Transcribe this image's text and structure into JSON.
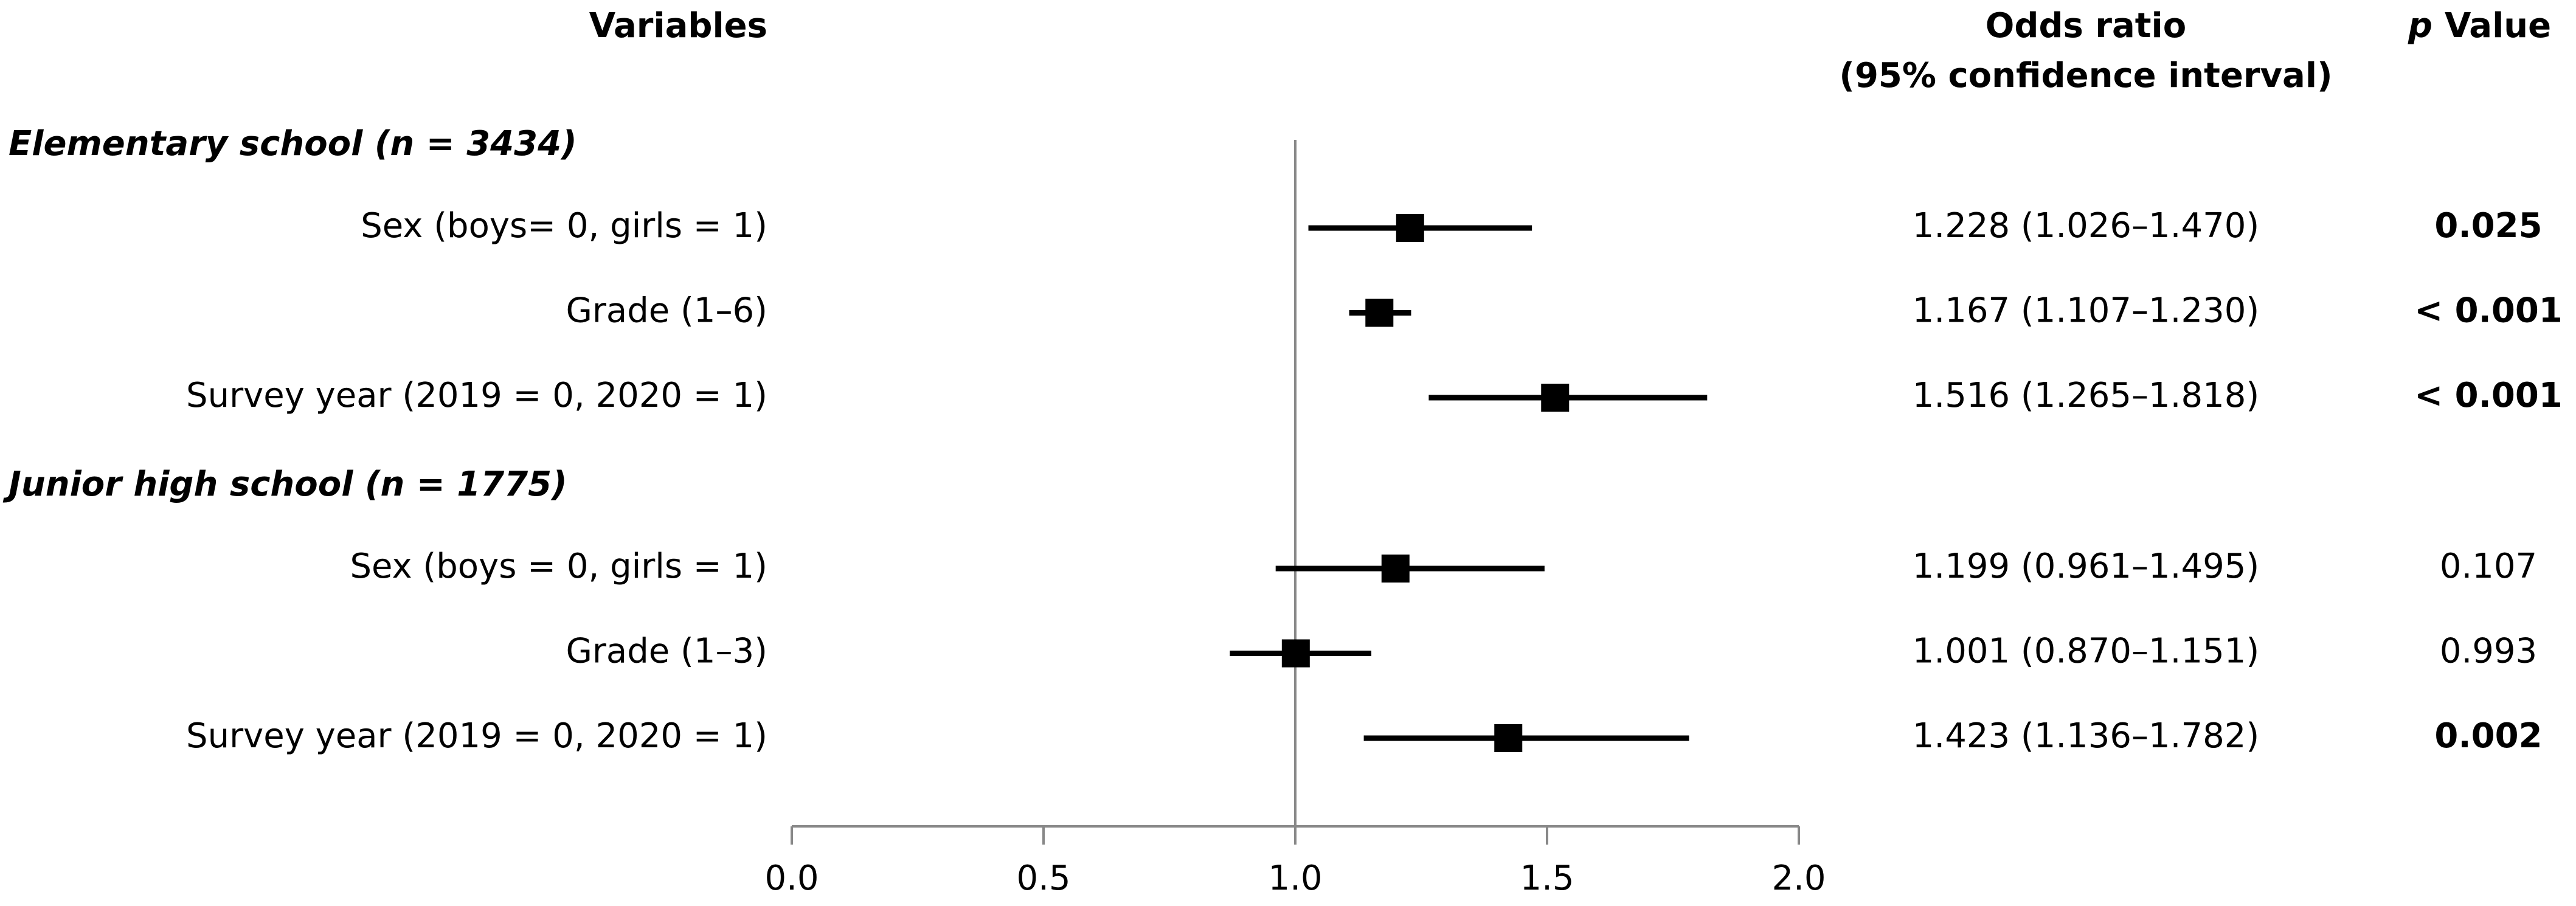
{
  "chart_data": {
    "type": "forest",
    "headers": {
      "variables": "Variables",
      "estimate": "Odds ratio",
      "estimate_sub": "(95% confidence interval)",
      "p_symbol": "p",
      "p_word": "Value"
    },
    "groups": [
      {
        "title": "Elementary school (n = 3434)",
        "rows": [
          {
            "label": "Sex (boys= 0, girls = 1)",
            "value": 1.228,
            "lower": 1.026,
            "upper": 1.47,
            "ci_label": "1.228 (1.026–1.470)",
            "p_label": "0.025",
            "p_bold": true
          },
          {
            "label": "Grade (1–6)",
            "value": 1.167,
            "lower": 1.107,
            "upper": 1.23,
            "ci_label": "1.167 (1.107–1.230)",
            "p_label": "< 0.001",
            "p_bold": true
          },
          {
            "label": "Survey year (2019 = 0, 2020 = 1)",
            "value": 1.516,
            "lower": 1.265,
            "upper": 1.818,
            "ci_label": "1.516 (1.265–1.818)",
            "p_label": "< 0.001",
            "p_bold": true
          }
        ]
      },
      {
        "title": "Junior high school (n = 1775)",
        "rows": [
          {
            "label": "Sex (boys = 0, girls = 1)",
            "value": 1.199,
            "lower": 0.961,
            "upper": 1.495,
            "ci_label": "1.199 (0.961–1.495)",
            "p_label": "0.107",
            "p_bold": false
          },
          {
            "label": "Grade (1–3)",
            "value": 1.001,
            "lower": 0.87,
            "upper": 1.151,
            "ci_label": "1.001 (0.870–1.151)",
            "p_label": "0.993",
            "p_bold": false
          },
          {
            "label": "Survey year (2019 = 0, 2020 = 1)",
            "value": 1.423,
            "lower": 1.136,
            "upper": 1.782,
            "ci_label": "1.423 (1.136–1.782)",
            "p_label": "0.002",
            "p_bold": true
          }
        ]
      }
    ],
    "reference": 1,
    "xlim": [
      0,
      2
    ],
    "xticks": [
      {
        "value": 0,
        "label": "0.0"
      },
      {
        "value": 0.5,
        "label": "0.5"
      },
      {
        "value": 1,
        "label": "1.0"
      },
      {
        "value": 1.5,
        "label": "1.5"
      },
      {
        "value": 2,
        "label": "2.0"
      }
    ],
    "color": "#000000"
  }
}
